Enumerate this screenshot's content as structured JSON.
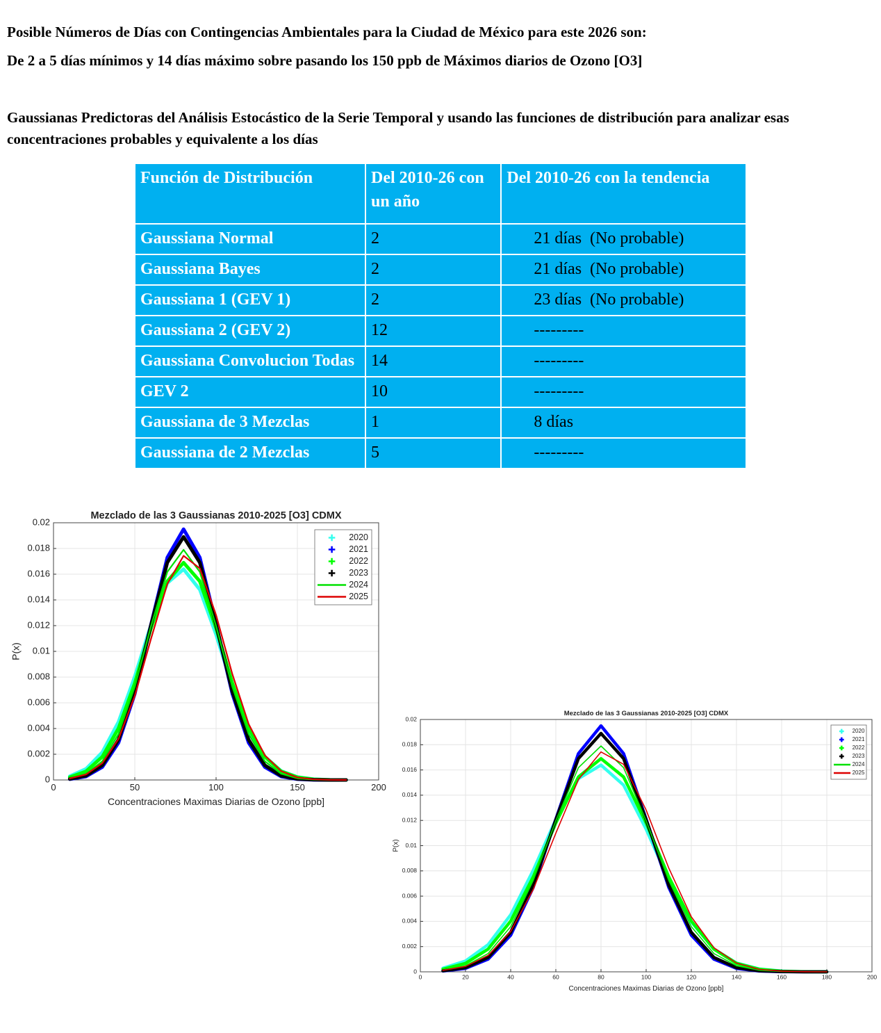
{
  "header": {
    "lines": [
      "Posible Números de Días con Contingencias Ambientales para la Ciudad de México para este 2026 son:",
      "De 2 a 5 días mínimos y 14 días máximo sobre pasando los 150 ppb de Máximos diarios de Ozono [O3]"
    ]
  },
  "intro": "Gaussianas Predictoras del Análisis Estocástico de la Serie Temporal y usando las funciones de distribución para analizar esas concentraciones probables y equivalente a los días",
  "table": {
    "header": [
      "Función de Distribución",
      "Del 2010-26 con un año",
      "Del 2010-26 con la tendencia"
    ],
    "rows": [
      [
        "Gaussiana Normal",
        "2",
        "21 días  (No probable)"
      ],
      [
        "Gaussiana Bayes",
        "2",
        "21 días  (No probable)"
      ],
      [
        "Gaussiana 1 (GEV 1)",
        "2",
        "23 días  (No probable)"
      ],
      [
        "Gaussiana 2 (GEV 2)",
        "12",
        "---------"
      ],
      [
        "Gaussiana Convolucion Todas",
        "14",
        "---------"
      ],
      [
        "GEV 2",
        "10",
        "---------"
      ],
      [
        "Gaussiana de 3 Mezclas",
        "1",
        "8 días"
      ],
      [
        "Gaussiana de 2 Mezclas",
        "5",
        "---------"
      ]
    ]
  },
  "chart_data": [
    {
      "type": "line",
      "title": "Mezclado de las 3 Gaussianas 2010-2025 [O3] CDMX",
      "xlabel": "Concentraciones Maximas Diarias de Ozono [ppb]",
      "ylabel": "P(x)",
      "x": [
        10,
        20,
        30,
        40,
        50,
        60,
        70,
        80,
        90,
        100,
        110,
        120,
        130,
        140,
        150,
        160,
        170,
        180
      ],
      "series": [
        {
          "name": "2020",
          "color": "#33ffee",
          "style": "plus",
          "values": [
            0.00029,
            0.00086,
            0.00215,
            0.00452,
            0.00805,
            0.01208,
            0.01531,
            0.01639,
            0.0148,
            0.0113,
            0.00727,
            0.00395,
            0.00181,
            0.0007,
            0.00023,
            6e-05,
            1e-05,
            0
          ]
        },
        {
          "name": "2021",
          "color": "#0000ff",
          "style": "plus",
          "values": [
            6e-05,
            0.00027,
            0.001,
            0.0029,
            0.0067,
            0.0121,
            0.0173,
            0.0195,
            0.0173,
            0.0121,
            0.0067,
            0.0029,
            0.001,
            0.00027,
            6e-05,
            1e-05,
            0,
            0
          ]
        },
        {
          "name": "2022",
          "color": "#00ff00",
          "style": "plus",
          "values": [
            0.00021,
            0.00067,
            0.0018,
            0.00402,
            0.00753,
            0.0118,
            0.01545,
            0.0169,
            0.01545,
            0.0118,
            0.00753,
            0.00402,
            0.0018,
            0.00067,
            0.00021,
            5e-05,
            1e-05,
            0
          ]
        },
        {
          "name": "2023",
          "color": "#000000",
          "style": "plus",
          "values": [
            8e-05,
            0.00033,
            0.00114,
            0.00313,
            0.00688,
            0.01206,
            0.0169,
            0.0189,
            0.0169,
            0.01206,
            0.00688,
            0.00313,
            0.00114,
            0.00033,
            8e-05,
            2e-05,
            0,
            0
          ]
        },
        {
          "name": "2024",
          "color": "#00e000",
          "style": "line",
          "values": [
            0.00013,
            0.00048,
            0.00145,
            0.00358,
            0.00724,
            0.01197,
            0.01618,
            0.0179,
            0.01618,
            0.01197,
            0.00724,
            0.00358,
            0.00145,
            0.00048,
            0.00013,
            3e-05,
            1e-05,
            0
          ]
        },
        {
          "name": "2025",
          "color": "#dd0000",
          "style": "line",
          "values": [
            0.00012,
            0.00043,
            0.0013,
            0.0032,
            0.00653,
            0.01099,
            0.01524,
            0.01743,
            0.01645,
            0.01282,
            0.00823,
            0.00436,
            0.00191,
            0.00069,
            0.0002,
            5e-05,
            1e-05,
            0
          ]
        }
      ],
      "xlim": [
        0,
        200
      ],
      "xticks": [
        0,
        50,
        100,
        150,
        200
      ],
      "ylim": [
        0,
        0.02
      ],
      "yticks": [
        0,
        0.002,
        0.004,
        0.006,
        0.008,
        0.01,
        0.012,
        0.014,
        0.016,
        0.018,
        0.02
      ],
      "grid": true,
      "legend": "northeast"
    },
    {
      "type": "line",
      "title": "Mezclado de las 3 Gaussianas 2010-2025 [O3] CDMX",
      "xlabel": "Concentraciones Maximas Diarias de Ozono [ppb]",
      "ylabel": "P(x)",
      "x": [
        10,
        20,
        30,
        40,
        50,
        60,
        70,
        80,
        90,
        100,
        110,
        120,
        130,
        140,
        150,
        160,
        170,
        180
      ],
      "series": [
        {
          "name": "2020",
          "color": "#33ffee",
          "style": "plus",
          "values": [
            0.00029,
            0.00086,
            0.00215,
            0.00452,
            0.00805,
            0.01208,
            0.01531,
            0.01639,
            0.0148,
            0.0113,
            0.00727,
            0.00395,
            0.00181,
            0.0007,
            0.00023,
            6e-05,
            1e-05,
            0
          ]
        },
        {
          "name": "2021",
          "color": "#0000ff",
          "style": "plus",
          "values": [
            6e-05,
            0.00027,
            0.001,
            0.0029,
            0.0067,
            0.0121,
            0.0173,
            0.0195,
            0.0173,
            0.0121,
            0.0067,
            0.0029,
            0.001,
            0.00027,
            6e-05,
            1e-05,
            0,
            0
          ]
        },
        {
          "name": "2022",
          "color": "#00ff00",
          "style": "plus",
          "values": [
            0.00021,
            0.00067,
            0.0018,
            0.00402,
            0.00753,
            0.0118,
            0.01545,
            0.0169,
            0.01545,
            0.0118,
            0.00753,
            0.00402,
            0.0018,
            0.00067,
            0.00021,
            5e-05,
            1e-05,
            0
          ]
        },
        {
          "name": "2023",
          "color": "#000000",
          "style": "plus",
          "values": [
            8e-05,
            0.00033,
            0.00114,
            0.00313,
            0.00688,
            0.01206,
            0.0169,
            0.0189,
            0.0169,
            0.01206,
            0.00688,
            0.00313,
            0.00114,
            0.00033,
            8e-05,
            2e-05,
            0,
            0
          ]
        },
        {
          "name": "2024",
          "color": "#00e000",
          "style": "line",
          "values": [
            0.00013,
            0.00048,
            0.00145,
            0.00358,
            0.00724,
            0.01197,
            0.01618,
            0.0179,
            0.01618,
            0.01197,
            0.00724,
            0.00358,
            0.00145,
            0.00048,
            0.00013,
            3e-05,
            1e-05,
            0
          ]
        },
        {
          "name": "2025",
          "color": "#dd0000",
          "style": "line",
          "values": [
            0.00012,
            0.00043,
            0.0013,
            0.0032,
            0.00653,
            0.01099,
            0.01524,
            0.01743,
            0.01645,
            0.01282,
            0.00823,
            0.00436,
            0.00191,
            0.00069,
            0.0002,
            5e-05,
            1e-05,
            0
          ]
        }
      ],
      "xlim": [
        0,
        200
      ],
      "xticks": [
        0,
        20,
        40,
        60,
        80,
        100,
        120,
        140,
        160,
        180,
        200
      ],
      "ylim": [
        0,
        0.02
      ],
      "yticks": [
        0,
        0.002,
        0.004,
        0.006,
        0.008,
        0.01,
        0.012,
        0.014,
        0.016,
        0.018,
        0.02
      ],
      "grid": true,
      "legend": "northeast"
    }
  ]
}
